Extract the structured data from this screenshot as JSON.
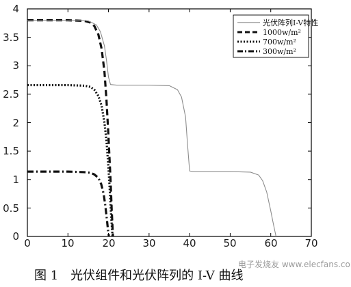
{
  "chart_data": {
    "type": "line",
    "title": "",
    "xlabel": "",
    "ylabel": "",
    "xlim": [
      0,
      70
    ],
    "ylim": [
      0,
      4
    ],
    "xticks": [
      "0",
      "10",
      "20",
      "30",
      "40",
      "50",
      "60",
      "70"
    ],
    "yticks": [
      "0",
      "0.5",
      "1",
      "1.5",
      "2",
      "2.5",
      "3",
      "3.5",
      "4"
    ],
    "legend_position": "top-right",
    "series": [
      {
        "name": "光伏阵列I-V特性",
        "style": "solid",
        "color": "#8c8c8c",
        "x": [
          0,
          10,
          15,
          17,
          18,
          19,
          19.5,
          20,
          20.5,
          22,
          30,
          35,
          37,
          38,
          39,
          39.5,
          40,
          41,
          50,
          55,
          57,
          58,
          59,
          60,
          60.5,
          61,
          61.3
        ],
        "y": [
          3.8,
          3.8,
          3.79,
          3.72,
          3.6,
          3.35,
          3.1,
          2.8,
          2.67,
          2.66,
          2.66,
          2.65,
          2.58,
          2.45,
          2.1,
          1.6,
          1.15,
          1.14,
          1.14,
          1.13,
          1.08,
          0.98,
          0.78,
          0.45,
          0.27,
          0.1,
          0
        ]
      },
      {
        "name": "1000w/m²",
        "style": "dashed",
        "color": "#111111",
        "x": [
          0,
          5,
          10,
          14,
          15.5,
          16.5,
          17.5,
          18.3,
          19,
          19.5,
          20,
          20.5,
          20.8,
          21.1
        ],
        "y": [
          3.8,
          3.8,
          3.8,
          3.79,
          3.76,
          3.7,
          3.55,
          3.3,
          2.9,
          2.4,
          1.75,
          1.0,
          0.45,
          0
        ]
      },
      {
        "name": "700w/m²",
        "style": "dotted",
        "color": "#111111",
        "x": [
          0,
          5,
          10,
          14,
          15.5,
          16.5,
          17.5,
          18.3,
          19,
          19.5,
          20,
          20.4,
          20.7,
          21.0
        ],
        "y": [
          2.66,
          2.66,
          2.66,
          2.65,
          2.63,
          2.58,
          2.47,
          2.3,
          2.0,
          1.68,
          1.2,
          0.7,
          0.3,
          0
        ]
      },
      {
        "name": "300w/m²",
        "style": "dashdot",
        "color": "#111111",
        "x": [
          0,
          5,
          10,
          14,
          15.5,
          16.5,
          17.5,
          18.2,
          18.8,
          19.2,
          19.6,
          19.9,
          20.1
        ],
        "y": [
          1.14,
          1.14,
          1.14,
          1.13,
          1.12,
          1.09,
          1.03,
          0.92,
          0.75,
          0.55,
          0.3,
          0.1,
          0
        ]
      }
    ]
  },
  "caption": "图 1　光伏组件和光伏阵列的 I-V 曲线",
  "watermark": "电子发烧友 www.elecfans.com"
}
